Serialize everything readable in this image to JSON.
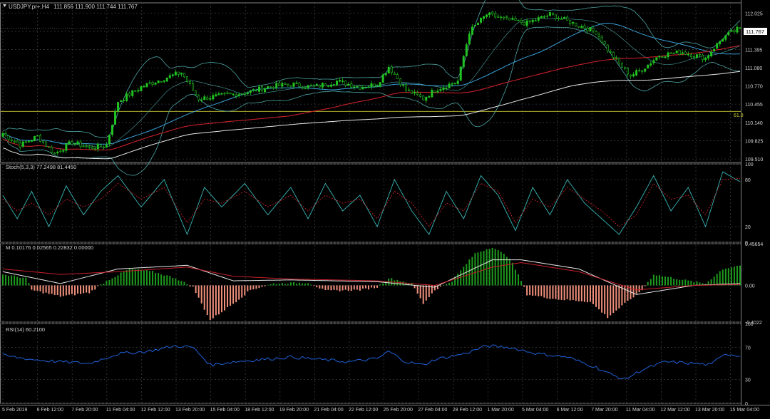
{
  "window": {
    "symbol_header": "USDJPY.pr+,H4",
    "ohlc": "111.856 111.900 111.744 111.767",
    "current_price_label": "111.767"
  },
  "colors": {
    "background": "#000000",
    "grid": "#3a3a3a",
    "text": "#d0d0d0",
    "bull_candle": "#21c321",
    "bear_candle": "#000000",
    "bb": "#4ea4a4",
    "ma_blue": "#3aa0d8",
    "ma_red": "#c8202a",
    "ma_white": "#e8e8e8",
    "fib": "#c8c832",
    "stoch_main": "#3ab8b8",
    "stoch_signal": "#c8202a",
    "macd_pos": "#1e9a1e",
    "macd_neg": "#f0907c",
    "macd_signal": "#c8202a",
    "macd_line": "#e8e8e8",
    "rsi": "#2060d8"
  },
  "panels": {
    "price": {
      "label": "USDJPY.pr+,H4",
      "y_ticks": [
        "112.025",
        "111.710",
        "111.395",
        "111.080",
        "110.770",
        "110.455",
        "110.140",
        "109.825",
        "109.510"
      ],
      "fib_label": "61.8"
    },
    "stoch": {
      "label": "Stoch(5,3,3) 77.2498 81.4450",
      "y_ticks": [
        "100",
        "80",
        "20",
        "0"
      ]
    },
    "momentum": {
      "label": "M 0.10176 0.02565 0.22832 0.00000",
      "y_ticks": [
        "0.45654",
        "0.00",
        "-0.4022"
      ]
    },
    "rsi": {
      "label": "RSI(14) 60.2100",
      "y_ticks": [
        "100",
        "70",
        "30",
        "0"
      ]
    }
  },
  "x_axis_labels": [
    "5 Feb 2019",
    "6 Feb 12:00",
    "7 Feb 20:00",
    "11 Feb 04:00",
    "12 Feb 12:00",
    "13 Feb 20:00",
    "15 Feb 04:00",
    "18 Feb 12:00",
    "19 Feb 20:00",
    "21 Feb 04:00",
    "22 Feb 12:00",
    "25 Feb 20:00",
    "27 Feb 04:00",
    "28 Feb 12:00",
    "1 Mar 20:00",
    "5 Mar 04:00",
    "6 Mar 12:00",
    "7 Mar 20:00",
    "11 Mar 04:00",
    "12 Mar 12:00",
    "13 Mar 20:00",
    "15 Mar 04:00"
  ],
  "chart_data": [
    {
      "type": "candlestick",
      "title": "USDJPY.pr+,H4",
      "ylim": [
        109.45,
        112.2
      ],
      "close_anchors": [
        [
          0,
          109.95
        ],
        [
          6,
          109.75
        ],
        [
          12,
          109.9
        ],
        [
          18,
          109.6
        ],
        [
          24,
          109.8
        ],
        [
          30,
          109.7
        ],
        [
          36,
          109.75
        ],
        [
          40,
          110.5
        ],
        [
          48,
          110.75
        ],
        [
          56,
          110.9
        ],
        [
          62,
          111.0
        ],
        [
          68,
          110.55
        ],
        [
          76,
          110.6
        ],
        [
          84,
          110.65
        ],
        [
          92,
          110.75
        ],
        [
          100,
          110.8
        ],
        [
          108,
          110.75
        ],
        [
          116,
          110.85
        ],
        [
          124,
          110.75
        ],
        [
          130,
          110.8
        ],
        [
          134,
          111.1
        ],
        [
          140,
          110.7
        ],
        [
          146,
          110.55
        ],
        [
          150,
          110.7
        ],
        [
          158,
          110.85
        ],
        [
          162,
          111.7
        ],
        [
          168,
          112.0
        ],
        [
          176,
          111.9
        ],
        [
          182,
          111.85
        ],
        [
          190,
          112.0
        ],
        [
          198,
          111.85
        ],
        [
          206,
          111.7
        ],
        [
          210,
          111.4
        ],
        [
          214,
          111.15
        ],
        [
          218,
          110.95
        ],
        [
          222,
          111.05
        ],
        [
          228,
          111.3
        ],
        [
          236,
          111.35
        ],
        [
          244,
          111.25
        ],
        [
          250,
          111.6
        ],
        [
          256,
          111.77
        ]
      ],
      "last_close": 111.767,
      "fib_level": 110.33
    },
    {
      "type": "line",
      "title": "Stoch(5,3,3) 77.2498 81.4450",
      "ylim": [
        0,
        100
      ],
      "series": [
        {
          "name": "Stoch",
          "x": [
            0,
            5,
            10,
            16,
            22,
            28,
            34,
            40,
            48,
            56,
            64,
            70,
            76,
            84,
            92,
            100,
            106,
            112,
            118,
            124,
            130,
            136,
            142,
            148,
            154,
            160,
            166,
            172,
            178,
            184,
            190,
            196,
            202,
            208,
            214,
            220,
            226,
            232,
            238,
            244,
            250,
            256
          ],
          "values": [
            60,
            30,
            65,
            20,
            72,
            35,
            65,
            85,
            45,
            80,
            10,
            70,
            45,
            75,
            35,
            70,
            30,
            75,
            40,
            60,
            20,
            80,
            40,
            10,
            65,
            30,
            85,
            60,
            15,
            70,
            35,
            80,
            50,
            30,
            10,
            45,
            85,
            40,
            70,
            20,
            90,
            77.25
          ]
        },
        {
          "name": "Signal",
          "x": [
            0,
            5,
            10,
            16,
            22,
            28,
            34,
            40,
            48,
            56,
            64,
            70,
            76,
            84,
            92,
            100,
            106,
            112,
            118,
            124,
            130,
            136,
            142,
            148,
            154,
            160,
            166,
            172,
            178,
            184,
            190,
            196,
            202,
            208,
            214,
            220,
            226,
            232,
            238,
            244,
            250,
            256
          ],
          "values": [
            55,
            40,
            50,
            35,
            55,
            45,
            55,
            75,
            55,
            70,
            25,
            55,
            50,
            65,
            45,
            60,
            40,
            60,
            50,
            55,
            30,
            65,
            50,
            20,
            50,
            40,
            75,
            65,
            25,
            55,
            45,
            70,
            55,
            40,
            20,
            35,
            75,
            55,
            60,
            35,
            80,
            81.45
          ]
        }
      ]
    },
    {
      "type": "bar",
      "title": "M 0.10176 0.02565 0.22832 0.00000",
      "ylim": [
        -0.4022,
        0.45654
      ],
      "anchors": [
        [
          0,
          0.12
        ],
        [
          8,
          0.08
        ],
        [
          10,
          -0.05
        ],
        [
          20,
          -0.12
        ],
        [
          30,
          -0.08
        ],
        [
          36,
          0.05
        ],
        [
          44,
          0.18
        ],
        [
          52,
          0.15
        ],
        [
          60,
          0.08
        ],
        [
          66,
          -0.02
        ],
        [
          72,
          -0.38
        ],
        [
          80,
          -0.2
        ],
        [
          86,
          -0.05
        ],
        [
          94,
          0.02
        ],
        [
          106,
          0.03
        ],
        [
          112,
          -0.06
        ],
        [
          124,
          -0.05
        ],
        [
          130,
          -0.02
        ],
        [
          134,
          0.08
        ],
        [
          142,
          0.02
        ],
        [
          146,
          -0.2
        ],
        [
          150,
          -0.05
        ],
        [
          156,
          0.05
        ],
        [
          164,
          0.35
        ],
        [
          170,
          0.42
        ],
        [
          176,
          0.3
        ],
        [
          180,
          0.05
        ],
        [
          182,
          -0.1
        ],
        [
          192,
          -0.15
        ],
        [
          204,
          -0.18
        ],
        [
          210,
          -0.35
        ],
        [
          216,
          -0.2
        ],
        [
          222,
          -0.05
        ],
        [
          226,
          0.12
        ],
        [
          238,
          0.05
        ],
        [
          244,
          0.02
        ],
        [
          250,
          0.18
        ],
        [
          256,
          0.22
        ]
      ],
      "lines": [
        {
          "name": "line1",
          "anchors": [
            [
              0,
              0.15
            ],
            [
              20,
              0.02
            ],
            [
              40,
              0.18
            ],
            [
              64,
              0.22
            ],
            [
              80,
              0.05
            ],
            [
              100,
              0.06
            ],
            [
              130,
              0.04
            ],
            [
              150,
              -0.02
            ],
            [
              170,
              0.28
            ],
            [
              180,
              0.28
            ],
            [
              200,
              0.18
            ],
            [
              220,
              -0.1
            ],
            [
              240,
              0.0
            ],
            [
              256,
              0.02
            ]
          ]
        },
        {
          "name": "line2",
          "anchors": [
            [
              0,
              0.18
            ],
            [
              20,
              0.12
            ],
            [
              40,
              0.15
            ],
            [
              64,
              0.2
            ],
            [
              80,
              0.1
            ],
            [
              100,
              0.07
            ],
            [
              130,
              0.05
            ],
            [
              150,
              0.0
            ],
            [
              170,
              0.2
            ],
            [
              180,
              0.25
            ],
            [
              200,
              0.15
            ],
            [
              220,
              -0.05
            ],
            [
              240,
              0.0
            ],
            [
              256,
              0.01
            ]
          ]
        }
      ]
    },
    {
      "type": "line",
      "title": "RSI(14) 60.2100",
      "ylim": [
        0,
        100
      ],
      "series": [
        {
          "name": "RSI(14)",
          "x": [
            0,
            10,
            20,
            30,
            40,
            50,
            60,
            66,
            72,
            80,
            90,
            100,
            110,
            120,
            130,
            134,
            140,
            146,
            150,
            160,
            168,
            176,
            186,
            196,
            206,
            212,
            216,
            222,
            230,
            240,
            246,
            250,
            256
          ],
          "values": [
            60,
            55,
            52,
            50,
            62,
            65,
            72,
            70,
            48,
            52,
            55,
            58,
            55,
            52,
            56,
            65,
            52,
            48,
            55,
            62,
            72,
            70,
            62,
            58,
            45,
            35,
            30,
            42,
            52,
            50,
            48,
            62,
            60.21
          ]
        }
      ]
    }
  ]
}
